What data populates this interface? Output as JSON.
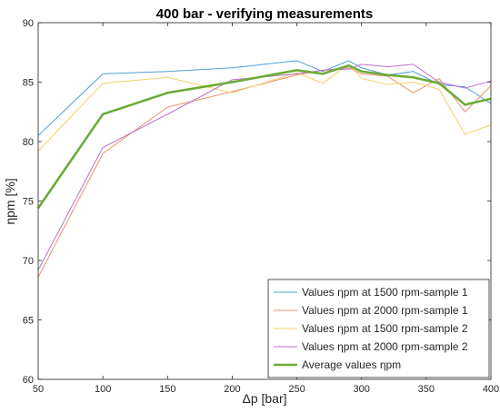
{
  "chart_data": {
    "type": "line",
    "title": "400 bar - verifying measurements",
    "xlabel": "Δp  [bar]",
    "ylabel": "ηpm  [%]",
    "xlim": [
      50,
      400
    ],
    "ylim": [
      60,
      90
    ],
    "xticks": [
      50,
      100,
      150,
      200,
      250,
      300,
      350,
      400
    ],
    "yticks": [
      60,
      65,
      70,
      75,
      80,
      85,
      90
    ],
    "grid": true,
    "minor_grid": true,
    "legend_position": "bottom-right",
    "series": [
      {
        "name": "Values  ηpm  at  1500  rpm-sample  1",
        "color": "#4d9fdb",
        "width": 1,
        "x": [
          50,
          100,
          150,
          200,
          250,
          270,
          290,
          300,
          320,
          340,
          360,
          380,
          400
        ],
        "y": [
          80.5,
          85.7,
          85.9,
          86.2,
          86.8,
          85.9,
          86.8,
          86.2,
          85.6,
          85.9,
          84.8,
          84.6,
          83.2
        ]
      },
      {
        "name": "Values  ηpm  at  2000  rpm-sample  1",
        "color": "#e8926a",
        "width": 1,
        "x": [
          50,
          100,
          150,
          200,
          250,
          270,
          290,
          300,
          320,
          340,
          360,
          380,
          400
        ],
        "y": [
          68.6,
          79.0,
          82.9,
          84.2,
          85.6,
          86.0,
          86.2,
          85.7,
          85.5,
          84.1,
          85.3,
          82.5,
          84.7
        ]
      },
      {
        "name": "Values  ηpm  at  1500  rpm-sample  2",
        "color": "#f5cf6a",
        "width": 1,
        "x": [
          50,
          100,
          150,
          200,
          250,
          270,
          290,
          300,
          320,
          340,
          360,
          380,
          400
        ],
        "y": [
          79.2,
          84.9,
          85.4,
          84.1,
          85.8,
          84.9,
          86.5,
          85.3,
          84.8,
          85.0,
          84.4,
          80.6,
          81.4
        ]
      },
      {
        "name": "Values  ηpm  at  2000  rpm-sample  2",
        "color": "#b86fc9",
        "width": 1,
        "x": [
          50,
          100,
          150,
          200,
          250,
          270,
          290,
          300,
          320,
          340,
          360,
          380,
          400
        ],
        "y": [
          69.2,
          79.5,
          82.3,
          85.2,
          85.7,
          86.0,
          86.1,
          86.5,
          86.3,
          86.5,
          85.0,
          84.5,
          85.1
        ]
      },
      {
        "name": "Average  values  ηpm",
        "color": "#6aaa35",
        "width": 2.5,
        "x": [
          50,
          100,
          150,
          200,
          250,
          270,
          290,
          300,
          320,
          340,
          360,
          380,
          400
        ],
        "y": [
          74.4,
          82.3,
          84.1,
          85.0,
          86.0,
          85.7,
          86.4,
          85.9,
          85.6,
          85.4,
          84.9,
          83.1,
          83.6
        ]
      }
    ]
  }
}
